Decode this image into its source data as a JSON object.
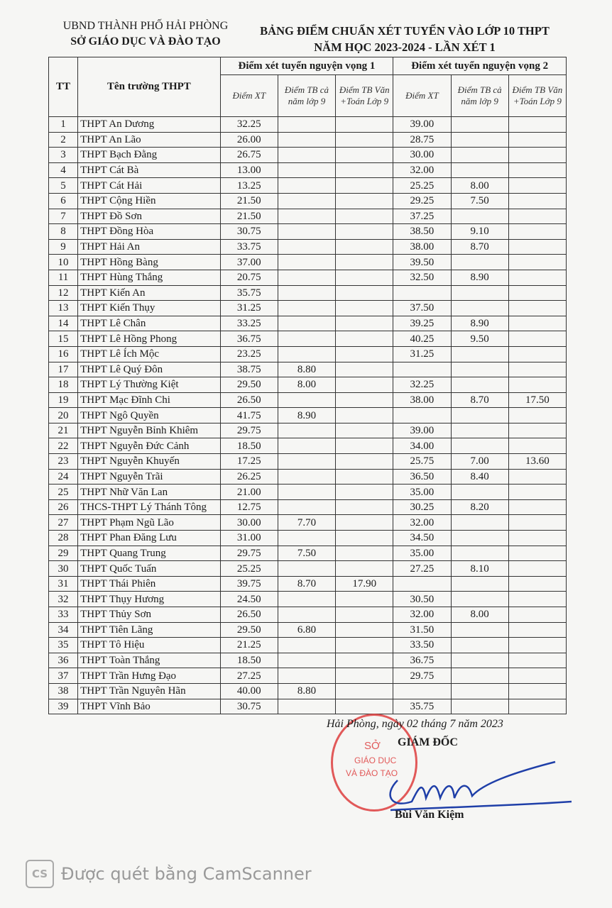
{
  "header": {
    "org_line1": "UBND THÀNH PHỐ HẢI PHÒNG",
    "org_line2": "SỞ GIÁO DỤC VÀ ĐÀO TẠO",
    "title_line1": "BẢNG ĐIỂM CHUẨN XÉT TUYỂN VÀO LỚP 10 THPT",
    "title_line2": "NĂM HỌC 2023-2024 - LẦN XÉT 1"
  },
  "table": {
    "col_tt": "TT",
    "col_name": "Tên trường THPT",
    "group1": "Điểm xét tuyển nguyện vọng 1",
    "group2": "Điểm xét tuyển nguyện vọng 2",
    "sub_xt": "Điểm XT",
    "sub_tb": "Điểm TB cả năm lớp 9",
    "sub_vt": "Điểm TB Văn +Toán Lớp 9",
    "rows": [
      [
        "1",
        "THPT An Dương",
        "32.25",
        "",
        "",
        "39.00",
        "",
        ""
      ],
      [
        "2",
        "THPT An Lão",
        "26.00",
        "",
        "",
        "28.75",
        "",
        ""
      ],
      [
        "3",
        "THPT Bạch Đằng",
        "26.75",
        "",
        "",
        "30.00",
        "",
        ""
      ],
      [
        "4",
        "THPT Cát Bà",
        "13.00",
        "",
        "",
        "32.00",
        "",
        ""
      ],
      [
        "5",
        "THPT Cát Hải",
        "13.25",
        "",
        "",
        "25.25",
        "8.00",
        ""
      ],
      [
        "6",
        "THPT Cộng Hiền",
        "21.50",
        "",
        "",
        "29.25",
        "7.50",
        ""
      ],
      [
        "7",
        "THPT Đồ Sơn",
        "21.50",
        "",
        "",
        "37.25",
        "",
        ""
      ],
      [
        "8",
        "THPT Đồng Hòa",
        "30.75",
        "",
        "",
        "38.50",
        "9.10",
        ""
      ],
      [
        "9",
        "THPT Hải An",
        "33.75",
        "",
        "",
        "38.00",
        "8.70",
        ""
      ],
      [
        "10",
        "THPT Hồng Bàng",
        "37.00",
        "",
        "",
        "39.50",
        "",
        ""
      ],
      [
        "11",
        "THPT Hùng Thắng",
        "20.75",
        "",
        "",
        "32.50",
        "8.90",
        ""
      ],
      [
        "12",
        "THPT Kiến An",
        "35.75",
        "",
        "",
        "",
        "",
        ""
      ],
      [
        "13",
        "THPT Kiến Thụy",
        "31.25",
        "",
        "",
        "37.50",
        "",
        ""
      ],
      [
        "14",
        "THPT Lê Chân",
        "33.25",
        "",
        "",
        "39.25",
        "8.90",
        ""
      ],
      [
        "15",
        "THPT Lê Hồng Phong",
        "36.75",
        "",
        "",
        "40.25",
        "9.50",
        ""
      ],
      [
        "16",
        "THPT Lê Ích Mộc",
        "23.25",
        "",
        "",
        "31.25",
        "",
        ""
      ],
      [
        "17",
        "THPT Lê Quý Đôn",
        "38.75",
        "8.80",
        "",
        "",
        "",
        ""
      ],
      [
        "18",
        "THPT Lý Thường Kiệt",
        "29.50",
        "8.00",
        "",
        "32.25",
        "",
        ""
      ],
      [
        "19",
        "THPT Mạc Đĩnh Chi",
        "26.50",
        "",
        "",
        "38.00",
        "8.70",
        "17.50"
      ],
      [
        "20",
        "THPT Ngô Quyền",
        "41.75",
        "8.90",
        "",
        "",
        "",
        ""
      ],
      [
        "21",
        "THPT Nguyễn Bỉnh Khiêm",
        "29.75",
        "",
        "",
        "39.00",
        "",
        ""
      ],
      [
        "22",
        "THPT Nguyễn Đức Cảnh",
        "18.50",
        "",
        "",
        "34.00",
        "",
        ""
      ],
      [
        "23",
        "THPT Nguyễn Khuyến",
        "17.25",
        "",
        "",
        "25.75",
        "7.00",
        "13.60"
      ],
      [
        "24",
        "THPT Nguyễn Trãi",
        "26.25",
        "",
        "",
        "36.50",
        "8.40",
        ""
      ],
      [
        "25",
        "THPT Nhữ Văn Lan",
        "21.00",
        "",
        "",
        "35.00",
        "",
        ""
      ],
      [
        "26",
        "THCS-THPT Lý Thánh Tông",
        "12.75",
        "",
        "",
        "30.25",
        "8.20",
        ""
      ],
      [
        "27",
        "THPT Phạm Ngũ Lão",
        "30.00",
        "7.70",
        "",
        "32.00",
        "",
        ""
      ],
      [
        "28",
        "THPT Phan Đăng Lưu",
        "31.00",
        "",
        "",
        "34.50",
        "",
        ""
      ],
      [
        "29",
        "THPT Quang Trung",
        "29.75",
        "7.50",
        "",
        "35.00",
        "",
        ""
      ],
      [
        "30",
        "THPT Quốc Tuấn",
        "25.25",
        "",
        "",
        "27.25",
        "8.10",
        ""
      ],
      [
        "31",
        "THPT Thái Phiên",
        "39.75",
        "8.70",
        "17.90",
        "",
        "",
        ""
      ],
      [
        "32",
        "THPT Thụy Hương",
        "24.50",
        "",
        "",
        "30.50",
        "",
        ""
      ],
      [
        "33",
        "THPT Thủy Sơn",
        "26.50",
        "",
        "",
        "32.00",
        "8.00",
        ""
      ],
      [
        "34",
        "THPT Tiên Lãng",
        "29.50",
        "6.80",
        "",
        "31.50",
        "",
        ""
      ],
      [
        "35",
        "THPT Tô Hiệu",
        "21.25",
        "",
        "",
        "33.50",
        "",
        ""
      ],
      [
        "36",
        "THPT Toàn Thắng",
        "18.50",
        "",
        "",
        "36.75",
        "",
        ""
      ],
      [
        "37",
        "THPT Trần Hưng Đạo",
        "27.25",
        "",
        "",
        "29.75",
        "",
        ""
      ],
      [
        "38",
        "THPT Trần Nguyên Hãn",
        "40.00",
        "8.80",
        "",
        "",
        "",
        ""
      ],
      [
        "39",
        "THPT Vĩnh Bảo",
        "30.75",
        "",
        "",
        "35.75",
        "",
        ""
      ]
    ]
  },
  "footer": {
    "date": "Hải Phòng, ngày 02 tháng 7 năm 2023",
    "signer_title": "GIÁM ĐỐC",
    "signer_name": "Bùi Văn Kiệm",
    "stamp_text": [
      "SỞ",
      "GIÁO DỤC",
      "VÀ ĐÀO TẠO"
    ],
    "stamp_color": "#d33333",
    "signature_color": "#1f3fa8"
  },
  "watermark": {
    "logo": "CS",
    "text": "Được quét bằng CamScanner"
  }
}
